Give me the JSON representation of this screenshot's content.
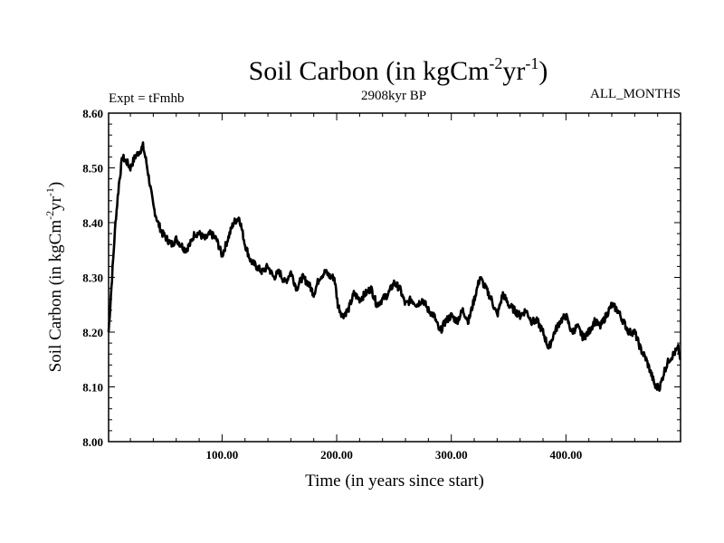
{
  "chart_data": {
    "type": "line",
    "title": {
      "main": "Soil Carbon (in kgCm",
      "sup1": "-2",
      "mid": "yr",
      "sup2": "-1",
      "end": ")"
    },
    "experiment": "Expt = tFmhb",
    "period": "2908kyr BP",
    "months": "ALL_MONTHS",
    "xlabel": "Time (in years since start)",
    "ylabel": {
      "main": "Soil Carbon (in kgCm",
      "sup1": "-2",
      "mid": "yr",
      "sup2": "-1",
      "end": ")"
    },
    "xlim": [
      1,
      500
    ],
    "ylim": [
      8.0,
      8.6
    ],
    "xticks": [
      100,
      200,
      300,
      400
    ],
    "xtick_labels": [
      "100.00",
      "200.00",
      "300.00",
      "400.00"
    ],
    "yticks": [
      8.0,
      8.1,
      8.2,
      8.3,
      8.4,
      8.5,
      8.6
    ],
    "ytick_labels": [
      "8.00",
      "8.10",
      "8.20",
      "8.30",
      "8.40",
      "8.50",
      "8.60"
    ],
    "series": [
      {
        "name": "Soil Carbon",
        "x": [
          1,
          4,
          7,
          10,
          13,
          17,
          20,
          24,
          28,
          31,
          34,
          37,
          40,
          44,
          48,
          52,
          56,
          60,
          64,
          68,
          72,
          76,
          80,
          85,
          90,
          95,
          100,
          105,
          110,
          115,
          120,
          125,
          130,
          135,
          140,
          145,
          150,
          155,
          160,
          165,
          170,
          175,
          180,
          185,
          190,
          195,
          198,
          201,
          205,
          210,
          215,
          220,
          225,
          230,
          235,
          240,
          245,
          250,
          255,
          260,
          265,
          270,
          275,
          280,
          285,
          290,
          295,
          300,
          305,
          310,
          315,
          320,
          325,
          330,
          335,
          340,
          345,
          350,
          355,
          360,
          365,
          370,
          375,
          380,
          385,
          390,
          395,
          400,
          405,
          410,
          415,
          420,
          425,
          430,
          435,
          440,
          445,
          450,
          455,
          460,
          465,
          470,
          475,
          478,
          482,
          486,
          490,
          494,
          498,
          500
        ],
        "values": [
          8.2,
          8.3,
          8.4,
          8.47,
          8.52,
          8.51,
          8.5,
          8.52,
          8.53,
          8.54,
          8.51,
          8.47,
          8.43,
          8.4,
          8.38,
          8.37,
          8.36,
          8.37,
          8.36,
          8.35,
          8.36,
          8.38,
          8.38,
          8.37,
          8.38,
          8.37,
          8.34,
          8.37,
          8.4,
          8.41,
          8.36,
          8.33,
          8.32,
          8.31,
          8.32,
          8.3,
          8.31,
          8.29,
          8.31,
          8.28,
          8.3,
          8.29,
          8.27,
          8.3,
          8.31,
          8.3,
          8.3,
          8.25,
          8.23,
          8.24,
          8.27,
          8.26,
          8.27,
          8.28,
          8.25,
          8.26,
          8.27,
          8.29,
          8.28,
          8.25,
          8.26,
          8.25,
          8.26,
          8.24,
          8.23,
          8.2,
          8.22,
          8.23,
          8.22,
          8.24,
          8.22,
          8.26,
          8.3,
          8.28,
          8.26,
          8.23,
          8.27,
          8.25,
          8.24,
          8.23,
          8.24,
          8.22,
          8.22,
          8.2,
          8.17,
          8.2,
          8.22,
          8.23,
          8.2,
          8.21,
          8.19,
          8.2,
          8.22,
          8.21,
          8.23,
          8.25,
          8.24,
          8.22,
          8.2,
          8.2,
          8.17,
          8.15,
          8.12,
          8.1,
          8.1,
          8.13,
          8.15,
          8.16,
          8.17,
          8.15
        ]
      }
    ]
  }
}
